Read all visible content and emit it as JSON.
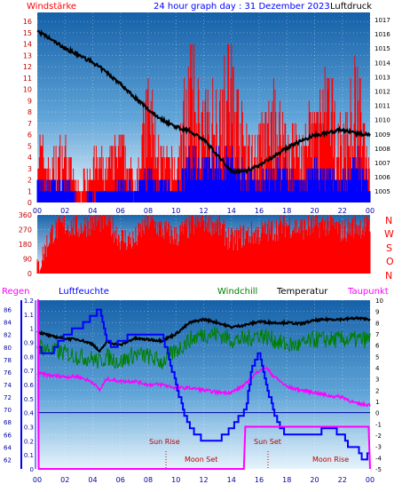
{
  "header": {
    "left_label": "Windstärke",
    "title": "24 hour graph day : 31 Dezember 2023",
    "right_label": "Luftdruck"
  },
  "legend": {
    "rain": "Regen",
    "humidity": "Luftfeuchte",
    "windchill": "Windchill",
    "temperature": "Temperatur",
    "dewpoint": "Taupunkt"
  },
  "compass": [
    "N",
    "W",
    "S",
    "O",
    "N"
  ],
  "annotations": {
    "sun_rise": "Sun Rise",
    "sun_set": "Sun Set",
    "moon_set": "Moon Set",
    "moon_rise": "Moon Rise"
  },
  "colors": {
    "panel_top": "#1560a8",
    "panel_bottom": "#d8ecf8",
    "wind_gust": "#ff0000",
    "wind_avg": "#0000ff",
    "pressure": "#000000",
    "humidity": "#0000ff",
    "windchill": "#008000",
    "temperature": "#000000",
    "dewpoint": "#ff00ff",
    "rain": "#ff00ff",
    "header_title": "#0000ff",
    "header_left": "#ff0000",
    "annotation": "#c00000"
  },
  "chart_data": [
    {
      "type": "line",
      "id": "wind_pressure",
      "x_ticks": [
        "00",
        "02",
        "04",
        "06",
        "08",
        "10",
        "12",
        "14",
        "16",
        "18",
        "20",
        "22",
        "00"
      ],
      "y_left_label": "Windstärke",
      "y_left_ticks": [
        0,
        1,
        2,
        3,
        4,
        5,
        6,
        7,
        8,
        9,
        10,
        11,
        12,
        13,
        14,
        15,
        16
      ],
      "ylim_left": [
        0,
        16.8
      ],
      "y_right_label": "Luftdruck",
      "y_right_ticks": [
        1005,
        1006,
        1007,
        1008,
        1009,
        1010,
        1011,
        1012,
        1013,
        1014,
        1015,
        1016,
        1017
      ],
      "ylim_right": [
        1004.2,
        1017.5
      ],
      "series": [
        {
          "name": "Windstärke",
          "axis": "left",
          "style": "bar",
          "x": [
            0,
            1,
            2,
            3,
            4,
            5,
            6,
            7,
            8,
            9,
            10,
            11,
            12,
            13,
            14,
            15,
            16,
            17,
            18,
            19,
            20,
            21,
            22,
            23,
            24
          ],
          "values": [
            5,
            3,
            5,
            1,
            4,
            3,
            5,
            2,
            9,
            4,
            3,
            11,
            7,
            9,
            11,
            5,
            5,
            8,
            6,
            5,
            7,
            9,
            5,
            10,
            3
          ]
        },
        {
          "name": "Wind avg",
          "axis": "left",
          "style": "bar",
          "x": [
            0,
            1,
            2,
            3,
            4,
            5,
            6,
            7,
            8,
            9,
            10,
            11,
            12,
            13,
            14,
            15,
            16,
            17,
            18,
            19,
            20,
            21,
            22,
            23,
            24
          ],
          "values": [
            2,
            2,
            2,
            0,
            1,
            1,
            2,
            1,
            3,
            2,
            1,
            4,
            4,
            4,
            4,
            3,
            2,
            3,
            3,
            2,
            3,
            3,
            2,
            4,
            2
          ]
        },
        {
          "name": "Luftdruck",
          "axis": "right",
          "style": "line",
          "x": [
            0,
            1,
            2,
            3,
            4,
            5,
            6,
            7,
            8,
            9,
            10,
            11,
            12,
            13,
            14,
            15,
            16,
            17,
            18,
            19,
            20,
            21,
            22,
            23,
            24
          ],
          "values": [
            1016.2,
            1015.6,
            1015.0,
            1014.5,
            1014.0,
            1013.3,
            1012.5,
            1011.6,
            1010.7,
            1010.0,
            1009.5,
            1009.2,
            1008.6,
            1007.5,
            1006.4,
            1006.4,
            1006.8,
            1007.4,
            1008.0,
            1008.5,
            1008.9,
            1009.1,
            1009.3,
            1009.0,
            1009.0
          ]
        }
      ]
    },
    {
      "type": "bar",
      "id": "wind_direction",
      "x_ticks": [
        "00",
        "02",
        "04",
        "06",
        "08",
        "10",
        "12",
        "14",
        "16",
        "18",
        "20",
        "22",
        "00"
      ],
      "y_ticks": [
        0,
        90,
        180,
        270,
        360
      ],
      "ylim": [
        0,
        360
      ],
      "series": [
        {
          "name": "Windrichtung",
          "x": [
            0,
            1,
            2,
            3,
            4,
            5,
            6,
            7,
            8,
            9,
            10,
            11,
            12,
            13,
            14,
            15,
            16,
            17,
            18,
            19,
            20,
            21,
            22,
            23,
            24
          ],
          "values": [
            20,
            250,
            300,
            280,
            320,
            330,
            220,
            200,
            330,
            270,
            230,
            290,
            330,
            300,
            200,
            240,
            250,
            270,
            300,
            280,
            290,
            310,
            260,
            300,
            280
          ]
        }
      ]
    },
    {
      "type": "line",
      "id": "temperature_humidity",
      "x_ticks": [
        "00",
        "02",
        "04",
        "06",
        "08",
        "10",
        "12",
        "14",
        "16",
        "18",
        "20",
        "22",
        "00"
      ],
      "y_humidity_ticks": [
        62,
        64,
        66,
        68,
        70,
        72,
        74,
        76,
        78,
        80,
        82,
        84,
        86
      ],
      "ylim_humidity": [
        60.5,
        87.5
      ],
      "y_rain_ticks": [
        0,
        0.1,
        0.2,
        0.3,
        0.4,
        0.5,
        0.6,
        0.7,
        0.8,
        0.9,
        1,
        1.1,
        1.2
      ],
      "ylim_rain": [
        0,
        1.2
      ],
      "y_temp_ticks": [
        -5,
        -4,
        -3,
        -2,
        -1,
        0,
        1,
        2,
        3,
        4,
        5,
        6,
        7,
        8,
        9,
        10
      ],
      "ylim_temp": [
        -5,
        10
      ],
      "series": [
        {
          "name": "Luftfeuchte",
          "axis": "humidity",
          "x": [
            0,
            0.5,
            1,
            2,
            3,
            4,
            4.5,
            5,
            5.5,
            6,
            7,
            8,
            9,
            10,
            10.5,
            11,
            12,
            13,
            13.5,
            14,
            15,
            15.5,
            16,
            16.5,
            17,
            17.5,
            18,
            19,
            20,
            21,
            22,
            22.5,
            23,
            23.5,
            24
          ],
          "values": [
            80,
            79,
            79,
            82,
            83,
            85,
            86,
            81,
            80,
            81,
            82,
            82,
            82,
            74,
            70,
            67,
            65,
            65,
            66,
            67,
            70,
            77,
            79,
            74,
            70,
            67,
            66,
            66,
            66,
            67,
            66,
            64,
            64,
            62,
            63
          ]
        },
        {
          "name": "Windchill",
          "axis": "temp",
          "x": [
            0,
            1,
            2,
            3,
            4,
            4.5,
            5,
            6,
            7,
            8,
            9,
            10,
            11,
            12,
            13,
            14,
            15,
            16,
            17,
            18,
            19,
            20,
            21,
            22,
            23,
            24
          ],
          "values": [
            6,
            5.5,
            5.3,
            5,
            4.8,
            4.5,
            5,
            4.5,
            5.2,
            5,
            4.5,
            5.5,
            6.5,
            7,
            7,
            6.5,
            6.5,
            7,
            6.5,
            6,
            6,
            6.5,
            6.5,
            6.5,
            6.5,
            6.5
          ]
        },
        {
          "name": "Temperatur",
          "axis": "temp",
          "x": [
            0,
            1,
            2,
            3,
            4,
            4.5,
            5,
            6,
            7,
            8,
            9,
            10,
            11,
            12,
            13,
            14,
            15,
            16,
            17,
            18,
            19,
            20,
            21,
            22,
            23,
            24
          ],
          "values": [
            7.2,
            6.8,
            6.6,
            6.5,
            6.1,
            5.4,
            6.3,
            6.0,
            6.6,
            6.5,
            6.4,
            7.0,
            8.0,
            8.3,
            8.0,
            7.6,
            7.8,
            8.1,
            8.0,
            8.0,
            7.9,
            8.2,
            8.3,
            8.3,
            8.4,
            8.3
          ]
        },
        {
          "name": "Taupunkt",
          "axis": "temp",
          "x": [
            0,
            1,
            2,
            3,
            4,
            4.5,
            5,
            6,
            7,
            8,
            9,
            10,
            11,
            12,
            13,
            14,
            15,
            16,
            16.5,
            17,
            18,
            19,
            20,
            21,
            22,
            23,
            24
          ],
          "values": [
            3.5,
            3.3,
            3.2,
            3.2,
            2.7,
            2.0,
            3.0,
            2.8,
            2.8,
            2.5,
            2.5,
            2.2,
            2.2,
            2.0,
            1.8,
            1.8,
            2.5,
            3.8,
            4.0,
            3.3,
            2.3,
            2.0,
            1.8,
            1.5,
            1.4,
            0.8,
            0.7
          ]
        },
        {
          "name": "Regen",
          "axis": "rain",
          "x": [
            0,
            0.05,
            0.1,
            14.9,
            15,
            23.9,
            24
          ],
          "values": [
            1.2,
            1.2,
            0,
            0,
            0.3,
            0.3,
            0
          ]
        }
      ]
    }
  ]
}
